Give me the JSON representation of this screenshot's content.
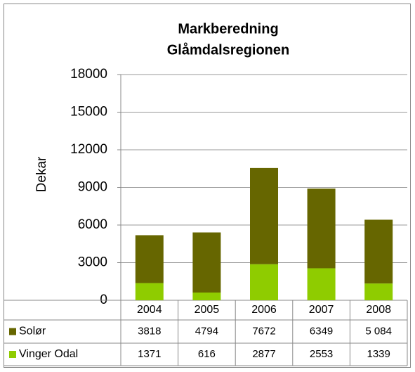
{
  "chart_data": {
    "type": "stacked_bar",
    "title": "Markberedning",
    "subtitle": "Glåmdalsregionen",
    "ylabel": "Dekar",
    "categories": [
      "2004",
      "2005",
      "2006",
      "2007",
      "2008"
    ],
    "series": [
      {
        "name": "Solør",
        "color": "#666600",
        "values": [
          3818,
          4794,
          7672,
          6349,
          5084
        ],
        "value_labels": [
          "3818",
          "4794",
          "7672",
          "6349",
          "5 084"
        ]
      },
      {
        "name": "Vinger Odal",
        "color": "#8fcc00",
        "values": [
          1371,
          616,
          2877,
          2553,
          1339
        ]
      }
    ],
    "ylim": [
      0,
      18000
    ],
    "yticks": [
      0,
      3000,
      6000,
      9000,
      12000,
      15000,
      18000
    ],
    "grid": true
  }
}
